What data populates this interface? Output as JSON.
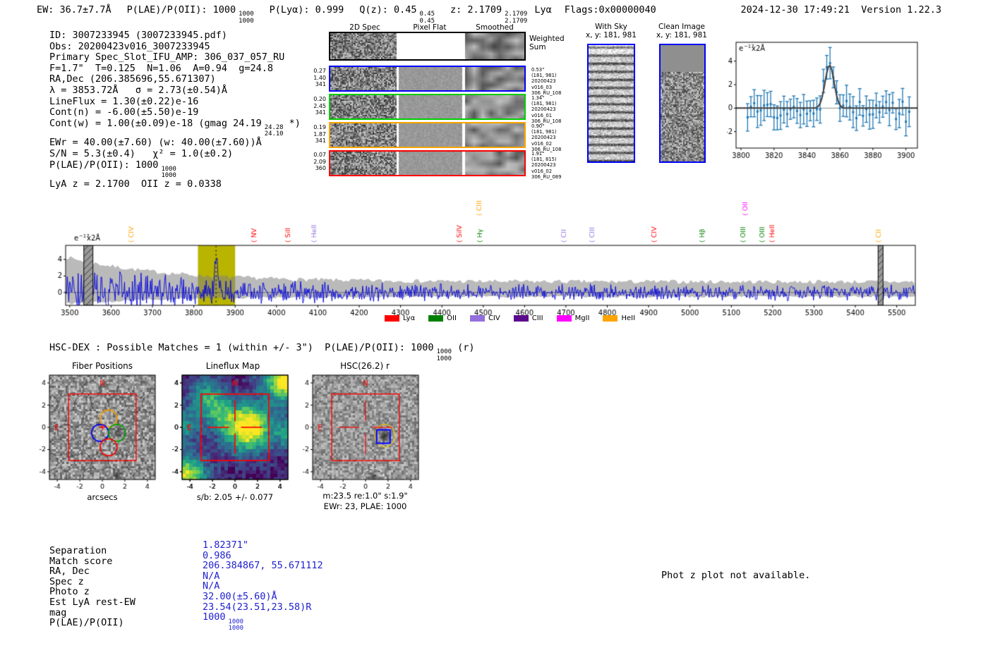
{
  "header": {
    "ew": "EW: 36.7±7.7Å",
    "plae_label": "P(LAE)/P(OII): 1000",
    "plae_top": "1000",
    "plae_bottom": "1000",
    "plya": "P(Lyα): 0.999",
    "qz_label": "Q(z): 0.45",
    "qz_top": "0.45",
    "qz_bottom": "0.45",
    "z_label": "z: 2.1709",
    "z_top": "2.1709",
    "z_bottom": "2.1709",
    "line_id": "Lyα",
    "flags": "Flags:0x00000040",
    "timestamp": "2024-12-30 17:49:21",
    "version": "Version 1.22.3"
  },
  "info": {
    "lines": [
      "ID: 3007233945 (3007233945.pdf)",
      "Obs: 20200423v016_3007233945",
      "Primary Spec_Slot_IFU_AMP: 306_037_057_RU",
      "F=1.7\"  T=0.125  N=1.06  A=0.94  g=24.8",
      "RA,Dec (206.385696,55.671307)",
      "λ = 3853.72Å   σ = 2.73(±0.54)Å",
      "LineFlux = 1.30(±0.22)e-16",
      "Cont(n) = -6.00(±5.50)e-19"
    ],
    "contw_pre": "Cont(w) = 1.00(±0.09)e-18 (gmag 24.19",
    "contw_top": "24.28",
    "contw_bottom": "24.10",
    "contw_post": " *)",
    "ewr": "EWr = 40.00(±7.60) (w: 40.00(±7.60))Å",
    "sn": "S/N = 5.3(±0.4)   χ² = 1.0(±0.2)",
    "plae_pre": "P(LAE)/P(OII): 1000",
    "plae_top": "1000",
    "plae_bottom": "1000",
    "zline": "LyA z = 2.1700  OII z = 0.0338"
  },
  "spec2d": {
    "col_headers": [
      "2D Spec",
      "Pixel Flat",
      "Smoothed"
    ],
    "weighted_label_1": "Weighted",
    "weighted_label_2": "Sum",
    "rows": [
      {
        "left": [
          "0.27",
          "1.40",
          "341"
        ],
        "right": [
          "0.53\"",
          "(181, 981)",
          "20200423",
          "v016_03",
          "306_RU_108"
        ]
      },
      {
        "left": [
          "0.20",
          "2.45",
          "341"
        ],
        "right": [
          "1.34\"",
          "(181, 981)",
          "20200423",
          "v016_01",
          "306_RU_108"
        ]
      },
      {
        "left": [
          "0.19",
          "1.87",
          "341"
        ],
        "right": [
          "0.90\"",
          "(181, 981)",
          "20200423",
          "v016_02",
          "306_RU_108"
        ]
      },
      {
        "left": [
          "0.07",
          "2.09",
          "360"
        ],
        "right": [
          "1.91\"",
          "(181, 815)",
          "20200423",
          "v016_02",
          "306_RU_089"
        ]
      }
    ]
  },
  "sky_cutouts": {
    "with_sky": {
      "title": "With Sky",
      "coords": "x, y: 181, 981"
    },
    "clean": {
      "title": "Clean Image",
      "coords": "x, y: 181, 981"
    }
  },
  "hsc_line": {
    "pre": "HSC-DEX : Possible Matches = 1 (within +/- 3\")  P(LAE)/P(OII): 1000",
    "top": "1000",
    "bottom": "1000",
    "post": " (r)"
  },
  "panels": {
    "fiber": {
      "title": "Fiber Positions",
      "xlabel": "arcsecs",
      "north": "N",
      "east": "E"
    },
    "lineflux": {
      "title": "Lineflux Map",
      "xlabel": "s/b: 2.05 +/- 0.077",
      "north": "N",
      "east": "E"
    },
    "hsc": {
      "title": "HSC(26.2) r",
      "xlabel1": "m:23.5  re:1.0\"  s:1.9\"",
      "xlabel2": "EWr: 23, PLAE: 1000",
      "north": "N",
      "east": "E"
    }
  },
  "match_table": {
    "rows": [
      {
        "label": "Separation",
        "value": "1.82371\""
      },
      {
        "label": "Match score",
        "value": "0.986"
      },
      {
        "label": "RA, Dec",
        "value": "206.384867, 55.671112"
      },
      {
        "label": "Spec z",
        "value": "N/A"
      },
      {
        "label": "Photo z",
        "value": "N/A"
      },
      {
        "label": "Est LyA rest-EW",
        "value": "32.00(±5.60)Å"
      },
      {
        "label": "mag",
        "value": "23.54(23.51,23.58)R"
      }
    ],
    "plae_label": "P(LAE)/P(OII)",
    "plae_value": "1000",
    "plae_top": "1000",
    "plae_bottom": "1000"
  },
  "notice": "Phot z plot not available.",
  "chart_data": [
    {
      "id": "line_fit_plot",
      "type": "scatter",
      "unit": {
        "base": "e",
        "sup": "−17",
        "rest": "x2Å"
      },
      "xlim": [
        3797,
        3907
      ],
      "ylim": [
        -3.4,
        5.6
      ],
      "x_ticks": [
        3800,
        3820,
        3840,
        3860,
        3880,
        3900
      ],
      "y_ticks": [
        -2,
        0,
        2,
        4
      ],
      "fit": {
        "center": 3853.72,
        "sigma": 2.73,
        "amplitude": 3.65
      },
      "marker_color": "#1f77b4",
      "fit_color": "#3c3c3c"
    },
    {
      "id": "main_spectrum",
      "type": "line",
      "unit": {
        "base": "e",
        "sup": "−17",
        "rest": "x2Å"
      },
      "xlim": [
        3490,
        5545
      ],
      "x_ticks": [
        3500,
        3600,
        3700,
        3800,
        3900,
        4000,
        4100,
        4200,
        4300,
        4400,
        4500,
        4600,
        4700,
        4800,
        4900,
        5000,
        5100,
        5200,
        5300,
        5400,
        5500
      ],
      "y_ticks": [
        0,
        2,
        4
      ],
      "ylim": [
        -1.55,
        5.7
      ],
      "emission_peak": {
        "wavelength": 3853.72,
        "amplitude": 4.3
      },
      "highlight_band": [
        3810,
        3900
      ],
      "masked_bands": [
        [
          3534,
          3556
        ],
        [
          5455,
          5467
        ]
      ],
      "line_color": "#0000dd",
      "error_band_color": "rgba(130,130,130,0.55)",
      "highlight_color": "#b9b400",
      "line_markers": [
        {
          "name": "CIV",
          "color": "#ffa500",
          "wavelength": 3648,
          "raised": false
        },
        {
          "name": "NV",
          "color": "#ff0000",
          "wavelength": 3946,
          "raised": false
        },
        {
          "name": "SiII",
          "color": "#ff0000",
          "wavelength": 4027,
          "raised": false
        },
        {
          "name": "HeII",
          "color": "#9370db",
          "wavelength": 4091,
          "raised": false
        },
        {
          "name": "SiIV",
          "color": "#ff0000",
          "wavelength": 4443,
          "raised": false
        },
        {
          "name": "CIII",
          "color": "#ffa500",
          "wavelength": 4490,
          "raised": true
        },
        {
          "name": "Hγ",
          "color": "#008000",
          "wavelength": 4492,
          "raised": false
        },
        {
          "name": "CII",
          "color": "#9370db",
          "wavelength": 4695,
          "raised": false
        },
        {
          "name": "CIII",
          "color": "#9370db",
          "wavelength": 4763,
          "raised": false
        },
        {
          "name": "CIV",
          "color": "#ff0000",
          "wavelength": 4914,
          "raised": false
        },
        {
          "name": "Hβ",
          "color": "#008000",
          "wavelength": 5029,
          "raised": false
        },
        {
          "name": "OIII",
          "color": "#008000",
          "wavelength": 5128,
          "raised": false
        },
        {
          "name": "OII",
          "color": "#ff00ff",
          "wavelength": 5133,
          "raised": true
        },
        {
          "name": "OIII",
          "color": "#008000",
          "wavelength": 5175,
          "raised": false
        },
        {
          "name": "HeII",
          "color": "#ff0000",
          "wavelength": 5199,
          "raised": false
        },
        {
          "name": "CII",
          "color": "#ffa500",
          "wavelength": 5456,
          "raised": false
        }
      ],
      "legend": [
        {
          "name": "Lyα",
          "color": "#ff0000"
        },
        {
          "name": "OII",
          "color": "#008000"
        },
        {
          "name": "CIV",
          "color": "#9370db"
        },
        {
          "name": "CIII",
          "color": "#5c0a8c"
        },
        {
          "name": "MgII",
          "color": "#ff00ff"
        },
        {
          "name": "HeII",
          "color": "#ffa500"
        }
      ]
    },
    {
      "id": "fiber_positions",
      "type": "scatter",
      "axis_ticks": [
        -4,
        -2,
        0,
        2,
        4
      ],
      "xlim": [
        -4.7,
        4.7
      ],
      "ylim": [
        -4.7,
        4.7
      ],
      "box_extent": [
        -3,
        3
      ],
      "fiber_radius_arcsec": 0.75,
      "highlighted_fibers": [
        {
          "color": "#ffa500",
          "x": 0.55,
          "y": 0.8
        },
        {
          "color": "#0000ff",
          "x": -0.2,
          "y": -0.5
        },
        {
          "color": "#00a000",
          "x": 1.3,
          "y": -0.5
        },
        {
          "color": "#ff0000",
          "x": 0.55,
          "y": -1.8
        }
      ]
    },
    {
      "id": "lineflux_map",
      "type": "heatmap",
      "axis_ticks": [
        -4,
        -2,
        0,
        2,
        4
      ],
      "xlim": [
        -4.7,
        4.7
      ],
      "ylim": [
        -4.7,
        4.7
      ],
      "box_extent": [
        -3,
        3
      ],
      "signal_to_background": "2.05 +/- 0.077",
      "peak_position": [
        1.0,
        0.1
      ]
    },
    {
      "id": "hsc_cutout",
      "type": "heatmap",
      "axis_ticks": [
        -4,
        -2,
        0,
        2,
        4
      ],
      "xlim": [
        -4.7,
        4.7
      ],
      "ylim": [
        -4.7,
        4.7
      ],
      "box_extent": [
        -3,
        3
      ],
      "catalog_object": {
        "x": 1.7,
        "y": -0.75,
        "mag": "23.5",
        "re": "1.0\"",
        "s": "1.9\""
      }
    }
  ]
}
